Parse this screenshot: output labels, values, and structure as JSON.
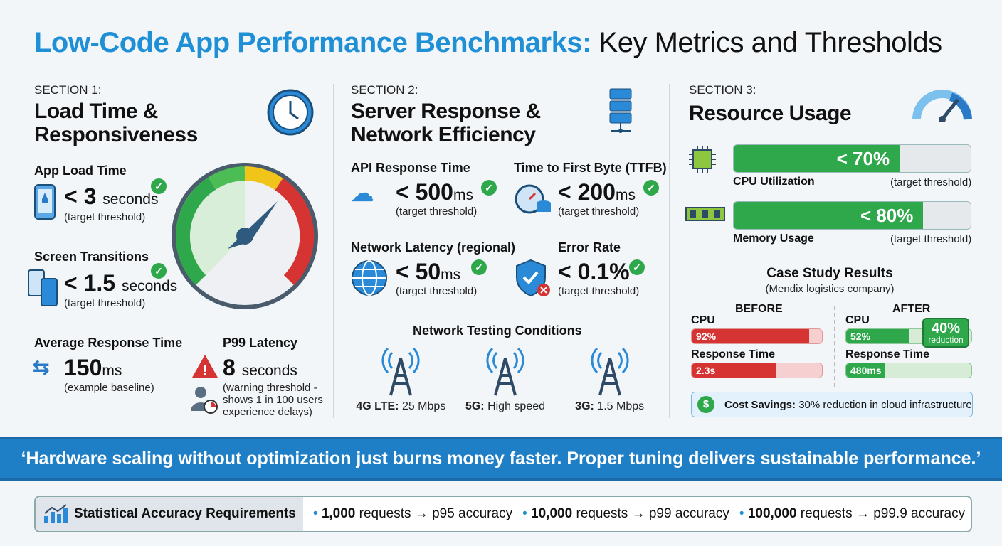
{
  "title": {
    "accent": "Low-Code App Performance Benchmarks:",
    "rest": "Key Metrics and Thresholds"
  },
  "colors": {
    "accent": "#1f8fd6",
    "good": "#2ea84a",
    "bad": "#d63333",
    "warn": "#f0c419"
  },
  "section1": {
    "kicker": "SECTION 1:",
    "title1": "Load Time &",
    "title2": "Responsiveness",
    "icon": "clock-icon",
    "app_load": {
      "label": "App Load Time",
      "value": "< 3",
      "unit": "seconds",
      "note": "(target threshold)"
    },
    "transitions": {
      "label": "Screen Transitions",
      "value": "< 1.5",
      "unit": "seconds",
      "note": "(target threshold)"
    },
    "avg": {
      "label": "Average Response Time",
      "value": "150",
      "unit": "ms",
      "note": "(example baseline)"
    },
    "p99": {
      "label": "P99 Latency",
      "value": "8",
      "unit": "seconds",
      "note1": "(warning threshold -",
      "note2": "shows 1 in 100 users",
      "note3": "experience delays)"
    }
  },
  "section2": {
    "kicker": "SECTION 2:",
    "title1": "Server Response &",
    "title2": "Network Efficiency",
    "icon": "server-icon",
    "api": {
      "label": "API Response Time",
      "value": "< 500",
      "unit": "ms",
      "note": "(target threshold)"
    },
    "ttfb": {
      "label": "Time to First Byte (TTFB)",
      "value": "< 200",
      "unit": "ms",
      "note": "(target threshold)"
    },
    "latency": {
      "label": "Network Latency (regional)",
      "value": "< 50",
      "unit": "ms",
      "note": "(target threshold)"
    },
    "error": {
      "label": "Error Rate",
      "value": "< 0.1%",
      "note": "(target threshold)"
    },
    "testing": {
      "title": "Network Testing Conditions",
      "items": [
        {
          "name": "4G LTE:",
          "speed": "25 Mbps"
        },
        {
          "name": "5G:",
          "speed": "High speed"
        },
        {
          "name": "3G:",
          "speed": "1.5 Mbps"
        }
      ]
    }
  },
  "section3": {
    "kicker": "SECTION 3:",
    "title": "Resource Usage",
    "icon": "speedometer-icon",
    "cpu": {
      "label": "CPU Utilization",
      "value": "< 70%",
      "note": "(target threshold)",
      "fill": 70
    },
    "mem": {
      "label": "Memory Usage",
      "value": "< 80%",
      "note": "(target threshold)",
      "fill": 80
    },
    "case": {
      "title": "Case Study Results",
      "subtitle": "(Mendix logistics company)",
      "before": "BEFORE",
      "after": "AFTER",
      "cpu_label": "CPU",
      "rt_label": "Response Time",
      "before_cpu": "92%",
      "before_rt": "2.3s",
      "after_cpu": "52%",
      "after_rt": "480ms",
      "badge_value": "40%",
      "badge_text": "reduction",
      "savings_label": "Cost Savings:",
      "savings_text": "30% reduction in cloud infrastructure"
    }
  },
  "quote": "‘Hardware scaling without optimization just burns money faster. Proper tuning delivers sustainable performance.’",
  "stats": {
    "label": "Statistical Accuracy Requirements",
    "items": [
      {
        "n": "1,000",
        "t": "requests → p95 accuracy"
      },
      {
        "n": "10,000",
        "t": "requests → p99 accuracy"
      },
      {
        "n": "100,000",
        "t": "requests → p99.9 accuracy"
      }
    ]
  }
}
